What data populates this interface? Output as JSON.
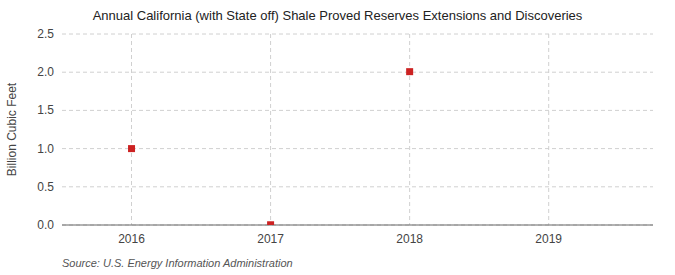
{
  "chart_data": {
    "type": "scatter",
    "title": "Annual California (with State off) Shale Proved Reserves Extensions and Discoveries",
    "ylabel": "Billion Cubic Feet",
    "source": "Source: U.S. Energy Information Administration",
    "x": [
      2016,
      2017,
      2018
    ],
    "values": [
      1.0,
      0.003,
      2.007
    ],
    "xlim": [
      2015.5,
      2019.75
    ],
    "ylim": [
      0.0,
      2.5
    ],
    "xticks": [
      2016,
      2017,
      2018,
      2019
    ],
    "yticks": [
      {
        "value": 0.0,
        "label": "0.0"
      },
      0.5,
      {
        "value": 1.0,
        "label": "1.0"
      },
      1.5,
      {
        "value": 2.0,
        "label": "2.0"
      },
      2.5
    ],
    "color": "#cc2222",
    "marker": "square",
    "grid": true
  }
}
